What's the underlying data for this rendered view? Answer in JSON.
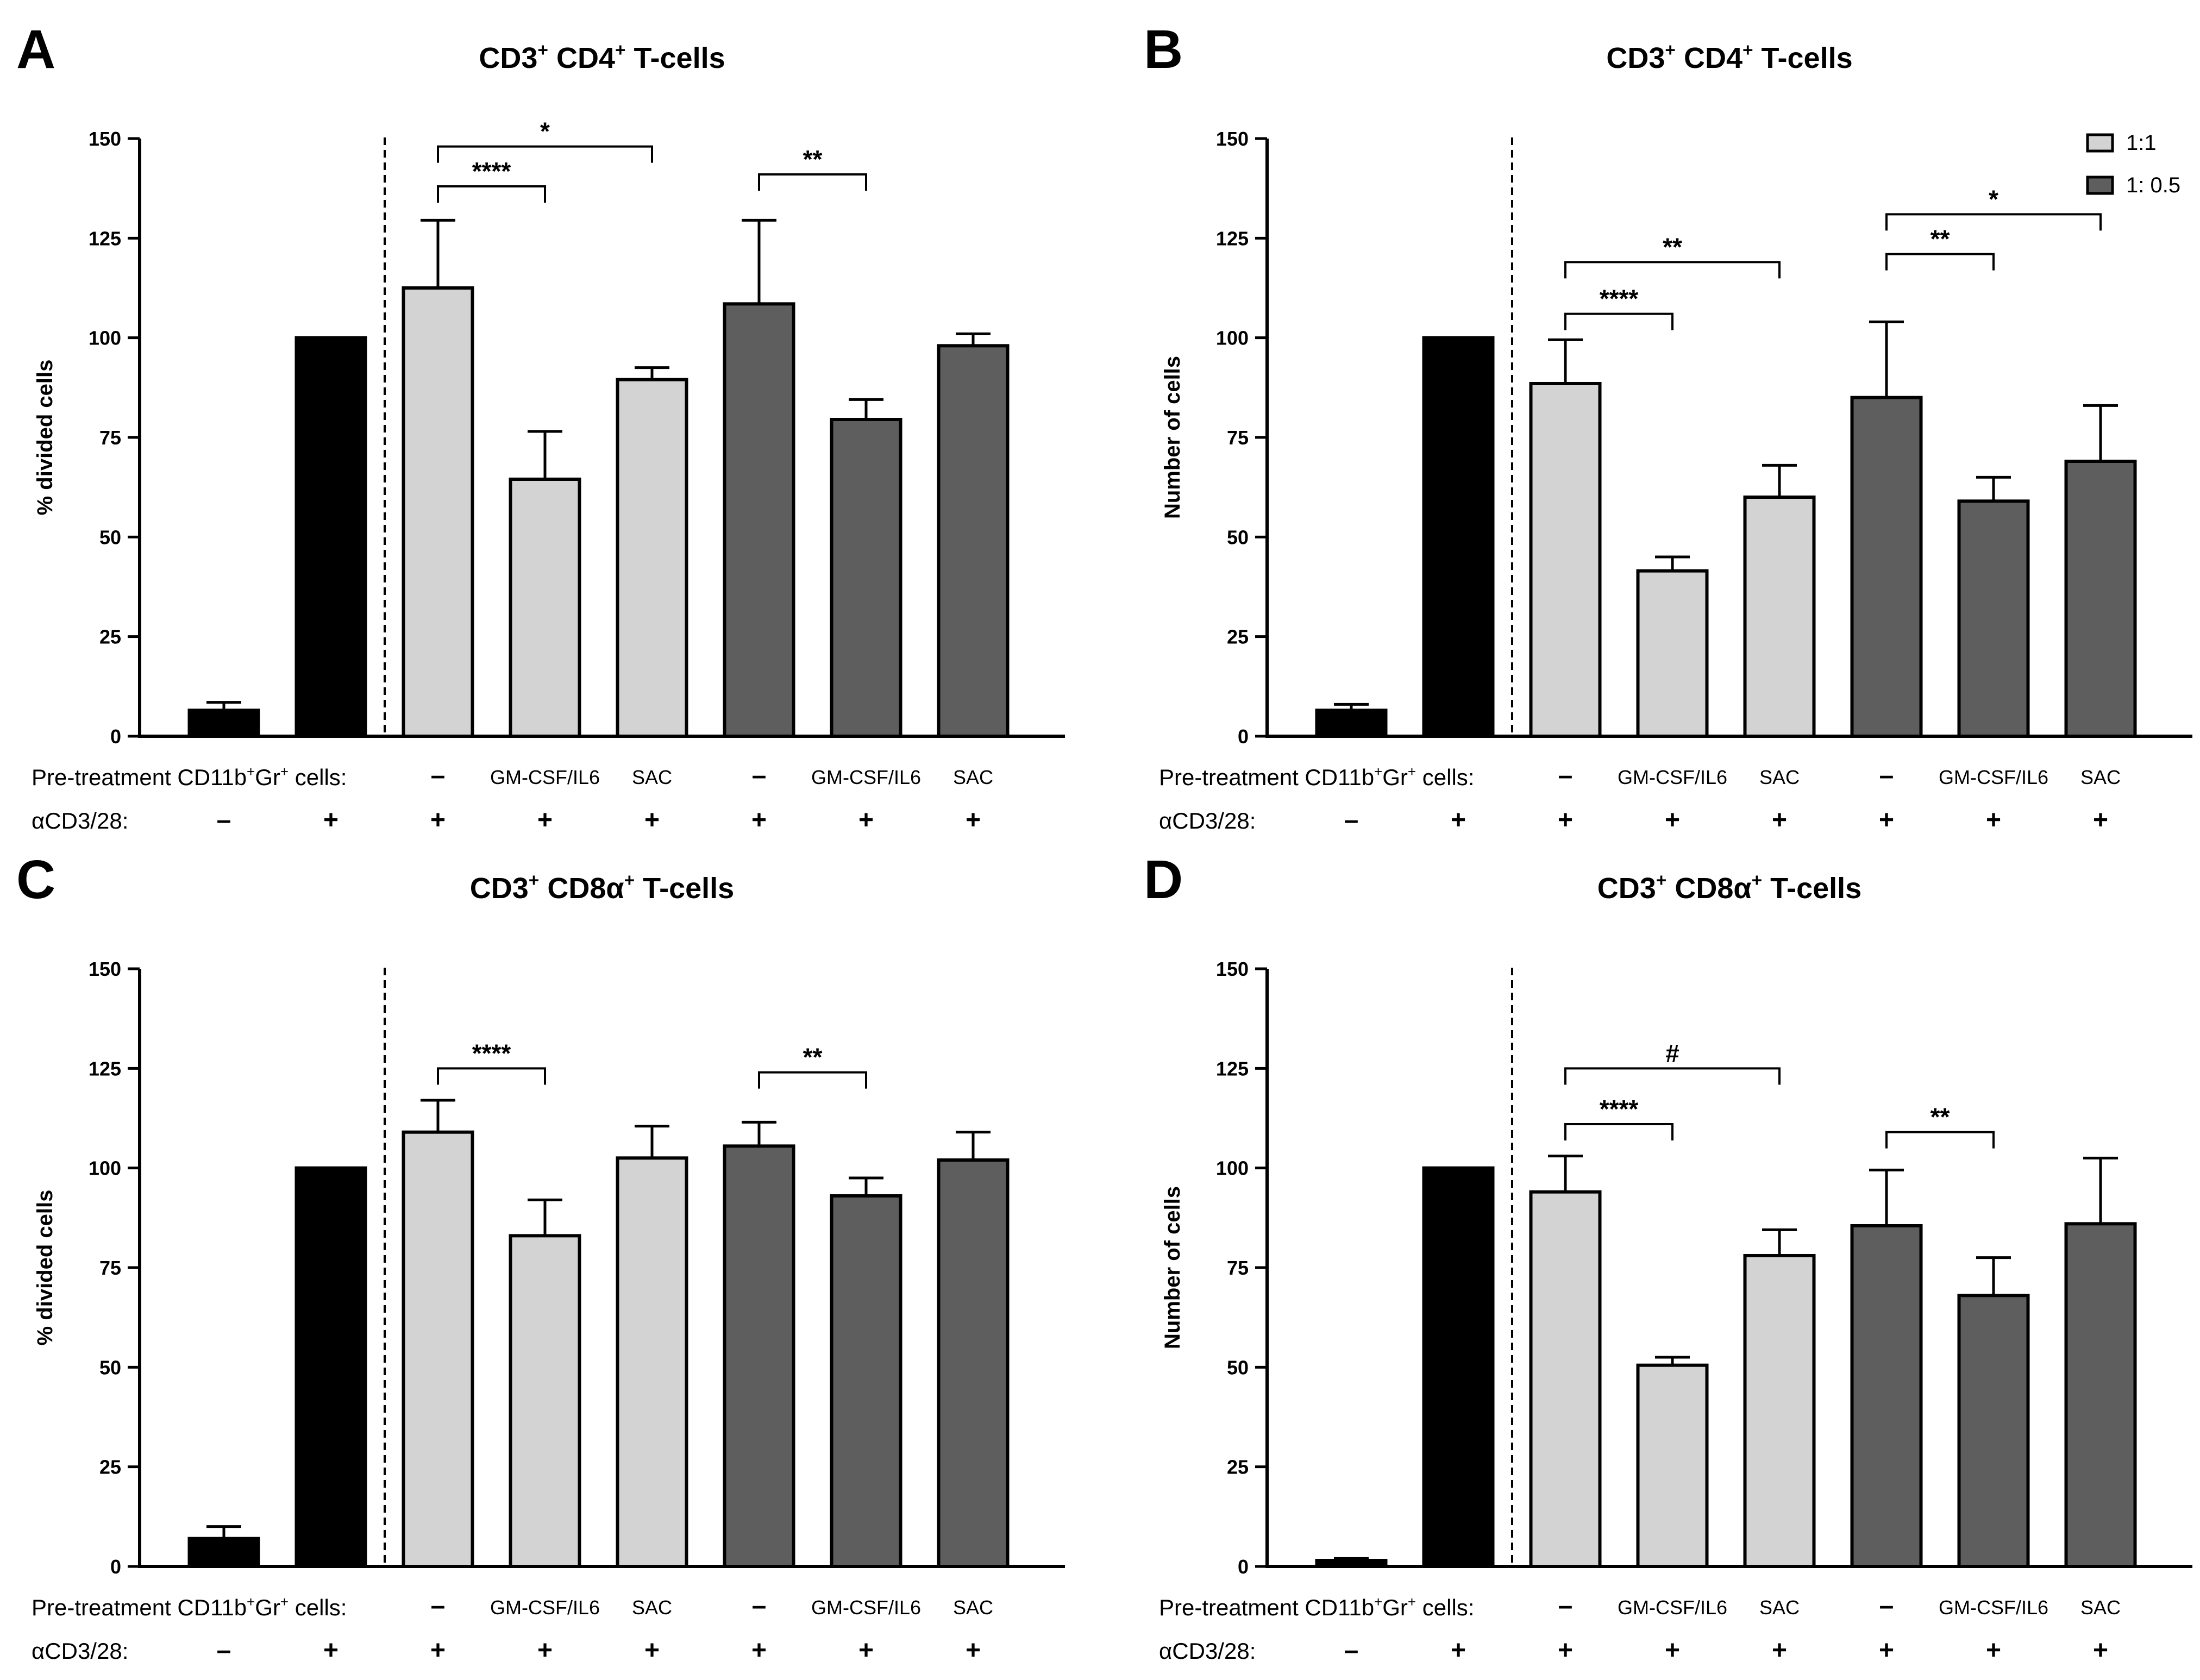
{
  "colors": {
    "control": "#000000",
    "ratio_1_1": "#d3d3d3",
    "ratio_1_05": "#5e5e5e"
  },
  "row_labels": {
    "pretreatment": "Pre-treatment CD11b",
    "pretreatment_sup1": "+",
    "pretreatment_mid": "Gr",
    "pretreatment_sup2": "+",
    "pretreatment_end": " cells:",
    "stim": "αCD3/28:"
  },
  "legend": [
    {
      "label": "1:1",
      "color_key": "ratio_1_1"
    },
    {
      "label": "1: 0.5",
      "color_key": "ratio_1_05"
    }
  ],
  "chart_data": [
    {
      "panel": "A",
      "type": "bar",
      "title_parts": [
        "CD3",
        "+",
        " CD4",
        "+",
        " T-cells"
      ],
      "ylabel": "% divided cells",
      "ylim": [
        0,
        150
      ],
      "yticks": [
        "0",
        "25",
        "50",
        "75",
        "100",
        "125",
        "150"
      ],
      "pretreatment": [
        "",
        "",
        "–",
        "GM-CSF/IL6",
        "SAC",
        "–",
        "GM-CSF/IL6",
        "SAC"
      ],
      "stimulation": [
        "–",
        "+",
        "+",
        "+",
        "+",
        "+",
        "+",
        "+"
      ],
      "groups": [
        "control",
        "control",
        "ratio_1_1",
        "ratio_1_1",
        "ratio_1_1",
        "ratio_1_05",
        "ratio_1_05",
        "ratio_1_05"
      ],
      "values": [
        6.5,
        100,
        112.5,
        64.5,
        89.5,
        108.5,
        79.5,
        98
      ],
      "errors": [
        2,
        0,
        17,
        12,
        3,
        21,
        5,
        3
      ],
      "significance": [
        {
          "from": 2,
          "to": 3,
          "label": "****",
          "y": 138
        },
        {
          "from": 2,
          "to": 4,
          "label": "*",
          "y": 148
        },
        {
          "from": 5,
          "to": 6,
          "label": "**",
          "y": 141
        }
      ],
      "legend": false
    },
    {
      "panel": "B",
      "type": "bar",
      "title_parts": [
        "CD3",
        "+",
        " CD4",
        "+",
        " T-cells"
      ],
      "ylabel": "Number of cells",
      "ylim": [
        0,
        150
      ],
      "yticks": [
        "0",
        "25",
        "50",
        "75",
        "100",
        "125",
        "150"
      ],
      "pretreatment": [
        "",
        "",
        "–",
        "GM-CSF/IL6",
        "SAC",
        "–",
        "GM-CSF/IL6",
        "SAC"
      ],
      "stimulation": [
        "–",
        "+",
        "+",
        "+",
        "+",
        "+",
        "+",
        "+"
      ],
      "groups": [
        "control",
        "control",
        "ratio_1_1",
        "ratio_1_1",
        "ratio_1_1",
        "ratio_1_05",
        "ratio_1_05",
        "ratio_1_05"
      ],
      "values": [
        6.5,
        100,
        88.5,
        41.5,
        60,
        85,
        59,
        69
      ],
      "errors": [
        1.5,
        0,
        11,
        3.5,
        8,
        19,
        6,
        14
      ],
      "significance": [
        {
          "from": 2,
          "to": 3,
          "label": "****",
          "y": 106
        },
        {
          "from": 2,
          "to": 4,
          "label": "**",
          "y": 119
        },
        {
          "from": 5,
          "to": 6,
          "label": "**",
          "y": 121
        },
        {
          "from": 5,
          "to": 7,
          "label": "*",
          "y": 131
        }
      ],
      "legend": true
    },
    {
      "panel": "C",
      "type": "bar",
      "title_parts": [
        "CD3",
        "+",
        " CD8α",
        "+",
        " T-cells"
      ],
      "ylabel": "% divided cells",
      "ylim": [
        0,
        150
      ],
      "yticks": [
        "0",
        "25",
        "50",
        "75",
        "100",
        "125",
        "150"
      ],
      "pretreatment": [
        "",
        "",
        "–",
        "GM-CSF/IL6",
        "SAC",
        "–",
        "GM-CSF/IL6",
        "SAC"
      ],
      "stimulation": [
        "–",
        "+",
        "+",
        "+",
        "+",
        "+",
        "+",
        "+"
      ],
      "groups": [
        "control",
        "control",
        "ratio_1_1",
        "ratio_1_1",
        "ratio_1_1",
        "ratio_1_05",
        "ratio_1_05",
        "ratio_1_05"
      ],
      "values": [
        7,
        100,
        109,
        83,
        102.5,
        105.5,
        93,
        102
      ],
      "errors": [
        3,
        0,
        8,
        9,
        8,
        6,
        4.5,
        7
      ],
      "significance": [
        {
          "from": 2,
          "to": 3,
          "label": "****",
          "y": 125
        },
        {
          "from": 5,
          "to": 6,
          "label": "**",
          "y": 124
        }
      ],
      "legend": false
    },
    {
      "panel": "D",
      "type": "bar",
      "title_parts": [
        "CD3",
        "+",
        " CD8α",
        "+",
        " T-cells"
      ],
      "ylabel": "Number of cells",
      "ylim": [
        0,
        150
      ],
      "yticks": [
        "0",
        "25",
        "50",
        "75",
        "100",
        "125",
        "150"
      ],
      "pretreatment": [
        "",
        "",
        "–",
        "GM-CSF/IL6",
        "SAC",
        "–",
        "GM-CSF/IL6",
        "SAC"
      ],
      "stimulation": [
        "–",
        "+",
        "+",
        "+",
        "+",
        "+",
        "+",
        "+"
      ],
      "groups": [
        "control",
        "control",
        "ratio_1_1",
        "ratio_1_1",
        "ratio_1_1",
        "ratio_1_05",
        "ratio_1_05",
        "ratio_1_05"
      ],
      "values": [
        1.5,
        100,
        94,
        50.5,
        78,
        85.5,
        68,
        86
      ],
      "errors": [
        0.5,
        0,
        9,
        2,
        6.5,
        14,
        9.5,
        16.5
      ],
      "significance": [
        {
          "from": 2,
          "to": 3,
          "label": "****",
          "y": 111
        },
        {
          "from": 2,
          "to": 4,
          "label": "#",
          "y": 125
        },
        {
          "from": 5,
          "to": 6,
          "label": "**",
          "y": 109
        }
      ],
      "legend": false
    }
  ]
}
